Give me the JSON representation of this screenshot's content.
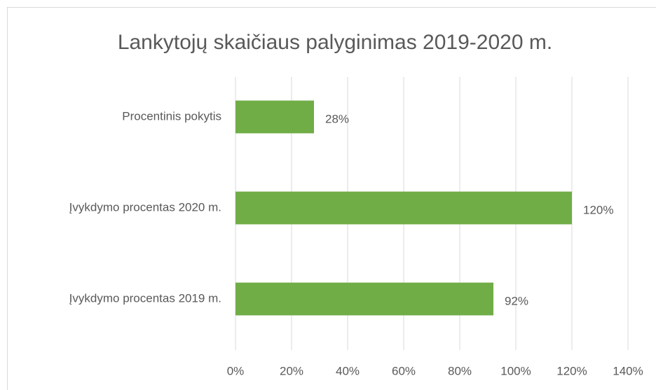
{
  "chart_data": {
    "type": "bar",
    "orientation": "horizontal",
    "title": "Lankytojų skaičiaus palyginimas 2019-2020 m.",
    "categories": [
      "Procentinis pokytis",
      "Įvykdymo procentas 2020 m.",
      "Įvykdymo procentas 2019 m."
    ],
    "values": [
      28,
      120,
      92
    ],
    "value_labels": [
      "28%",
      "120%",
      "92%"
    ],
    "color": "#70ad47",
    "xlim": [
      0,
      140
    ],
    "xticks": [
      {
        "value": 0,
        "label": "0%"
      },
      {
        "value": 20,
        "label": "20%"
      },
      {
        "value": 40,
        "label": "40%"
      },
      {
        "value": 60,
        "label": "60%"
      },
      {
        "value": 80,
        "label": "80%"
      },
      {
        "value": 100,
        "label": "100%"
      },
      {
        "value": 120,
        "label": "120%"
      },
      {
        "value": 140,
        "label": "140%"
      }
    ],
    "grid": true
  }
}
